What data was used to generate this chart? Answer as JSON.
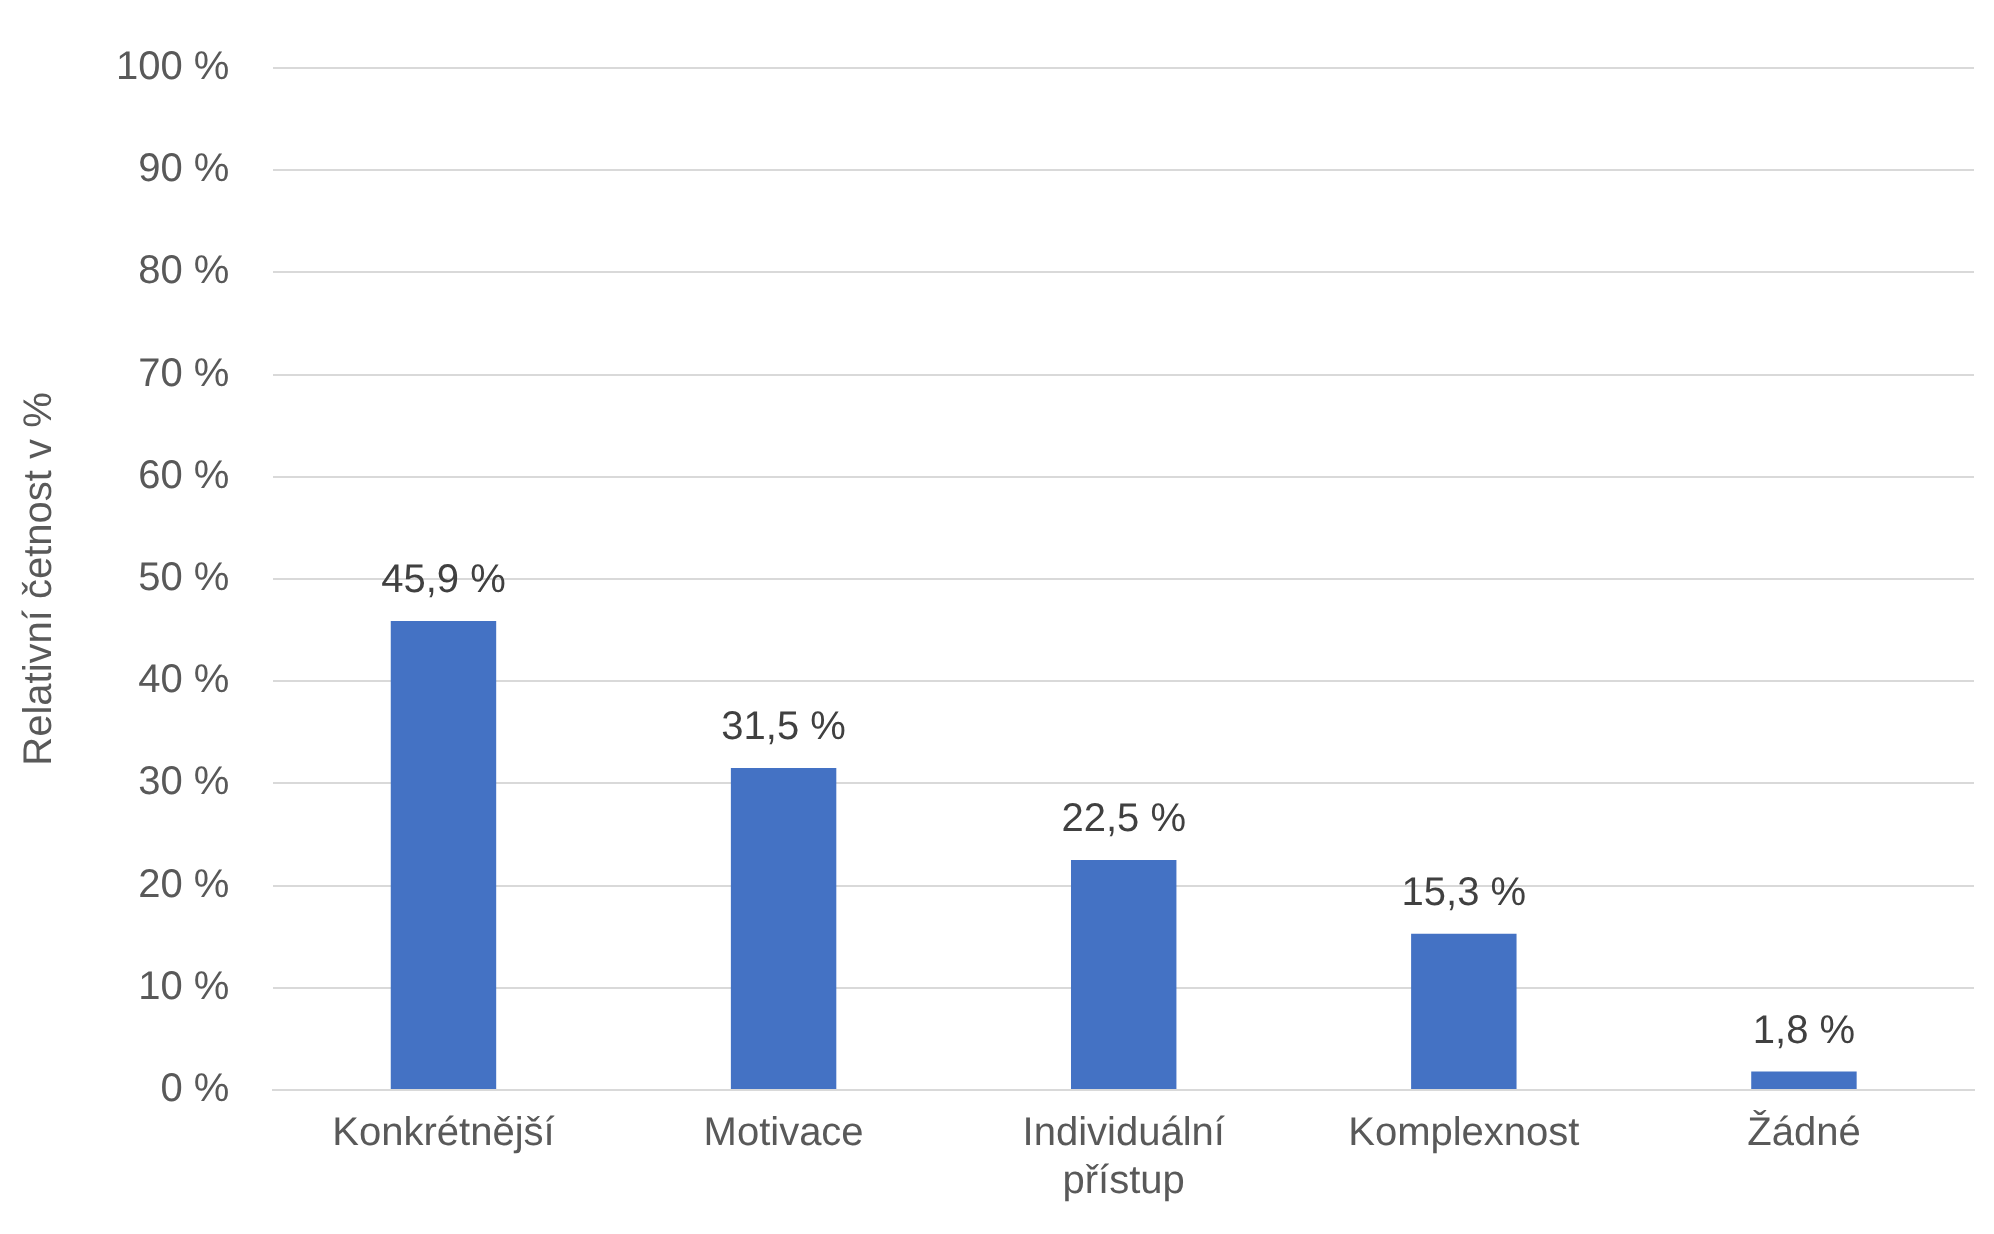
{
  "chart_data": {
    "type": "bar",
    "ylabel": "Relativní četnost v %",
    "categories": [
      "Konkrétnější",
      "Motivace",
      "Individuální přístup",
      "Komplexnost",
      "Žádné"
    ],
    "values": [
      45.9,
      31.5,
      22.5,
      15.3,
      1.8
    ],
    "color": "#4472c4",
    "value_labels": [
      "45,9 %",
      "31,5 %",
      "22,5 %",
      "15,3 %",
      "1,8 %"
    ],
    "ylim": [
      0,
      100
    ],
    "yticks": [
      {
        "value": 0,
        "label": "0 %"
      },
      {
        "value": 10,
        "label": "10 %"
      },
      {
        "value": 20,
        "label": "20 %"
      },
      {
        "value": 30,
        "label": "30 %"
      },
      {
        "value": 40,
        "label": "40 %"
      },
      {
        "value": 50,
        "label": "50 %"
      },
      {
        "value": 60,
        "label": "60 %"
      },
      {
        "value": 70,
        "label": "70 %"
      },
      {
        "value": 80,
        "label": "80 %"
      },
      {
        "value": 90,
        "label": "90 %"
      },
      {
        "value": 100,
        "label": "100 %"
      }
    ],
    "grid": "y",
    "legend": false
  }
}
